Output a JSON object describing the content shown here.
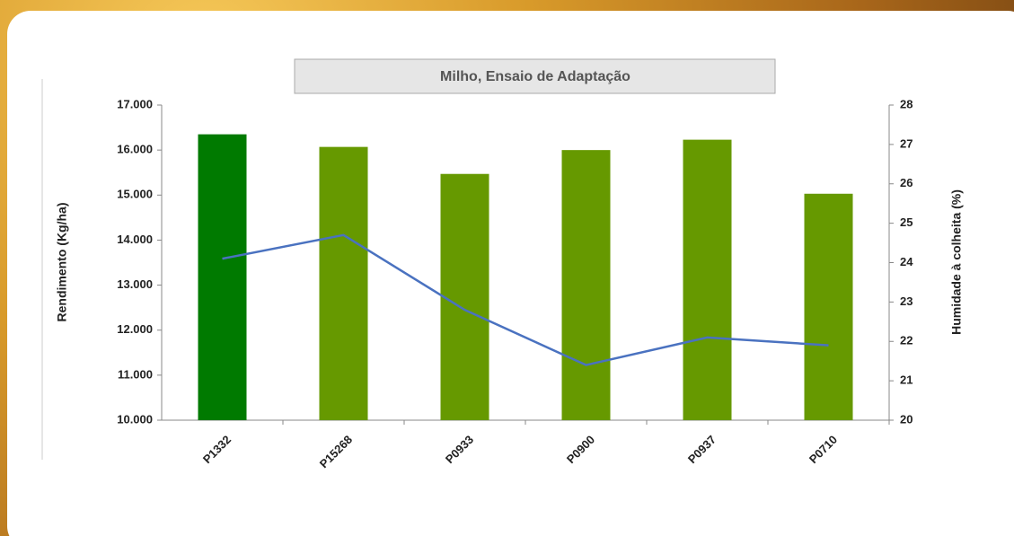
{
  "chart_data": {
    "type": "bar-line",
    "title": "Milho, Ensaio  de Adaptação",
    "y_label": "Rendimento (Kg/ha)",
    "y2_label": "Humidade à colheita (%)",
    "categories": [
      "P1332",
      "P15268",
      "P0933",
      "P0900",
      "P0937",
      "P0710"
    ],
    "series": [
      {
        "type": "bar",
        "colors": [
          "#007a00",
          "#669900",
          "#669900",
          "#669900",
          "#669900",
          "#669900"
        ],
        "values": [
          16350,
          16070,
          15470,
          16000,
          16230,
          15030
        ]
      },
      {
        "type": "line",
        "axis": "y2",
        "color": "#4a72c0",
        "values": [
          24.1,
          24.7,
          22.8,
          21.4,
          22.1,
          21.9
        ]
      }
    ],
    "ylim": [
      10000,
      17000
    ],
    "yticks": [
      {
        "value": 10000,
        "label": "10.000"
      },
      {
        "value": 11000,
        "label": "11.000"
      },
      {
        "value": 12000,
        "label": "12.000"
      },
      {
        "value": 13000,
        "label": "13.000"
      },
      {
        "value": 14000,
        "label": "14.000"
      },
      {
        "value": 15000,
        "label": "15.000"
      },
      {
        "value": 16000,
        "label": "16.000"
      },
      {
        "value": 17000,
        "label": "17.000"
      }
    ],
    "y2lim": [
      20,
      28
    ],
    "y2ticks": [
      20,
      21,
      22,
      23,
      24,
      25,
      26,
      27,
      28
    ]
  }
}
